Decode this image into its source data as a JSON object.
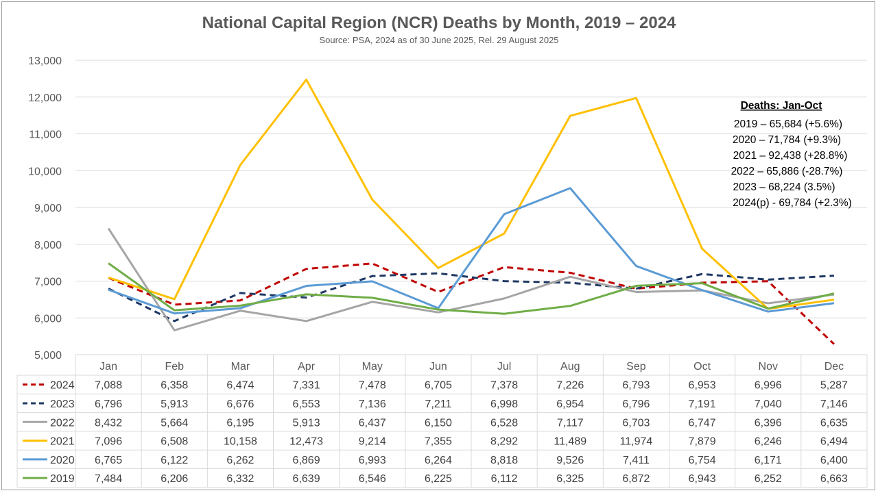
{
  "chart_data": {
    "type": "line",
    "title": "National Capital Region (NCR)  Deaths by Month, 2019 – 2024",
    "subtitle": "Source: PSA, 2024 as of 30 June 2025, Rel. 29 August 2025",
    "categories": [
      "Jan",
      "Feb",
      "Mar",
      "Apr",
      "May",
      "Jun",
      "Jul",
      "Aug",
      "Sep",
      "Oct",
      "Nov",
      "Dec"
    ],
    "ylim": [
      5000,
      13000
    ],
    "yticks": [
      5000,
      6000,
      7000,
      8000,
      9000,
      10000,
      11000,
      12000,
      13000
    ],
    "ytick_labels": [
      "5,000",
      "6,000",
      "7,000",
      "8,000",
      "9,000",
      "10,000",
      "11,000",
      "12,000",
      "13,000"
    ],
    "grid": true,
    "series": [
      {
        "name": "2024",
        "color": "#c00000",
        "dash": "dash",
        "values": [
          7088,
          6358,
          6474,
          7331,
          7478,
          6705,
          7378,
          7226,
          6793,
          6953,
          6996,
          5287
        ]
      },
      {
        "name": "2023",
        "color": "#1f3864",
        "dash": "dash",
        "values": [
          6796,
          5913,
          6676,
          6553,
          7136,
          7211,
          6998,
          6954,
          6796,
          7191,
          7040,
          7146
        ]
      },
      {
        "name": "2022",
        "color": "#a5a5a5",
        "dash": "solid",
        "values": [
          8432,
          5664,
          6195,
          5913,
          6437,
          6150,
          6528,
          7117,
          6703,
          6747,
          6396,
          6635
        ]
      },
      {
        "name": "2021",
        "color": "#ffc000",
        "dash": "solid",
        "values": [
          7096,
          6508,
          10158,
          12473,
          9214,
          7355,
          8292,
          11489,
          11974,
          7879,
          6246,
          6494
        ]
      },
      {
        "name": "2020",
        "color": "#5b9bd5",
        "dash": "solid",
        "values": [
          6765,
          6122,
          6262,
          6869,
          6993,
          6264,
          8818,
          9526,
          7411,
          6754,
          6171,
          6400
        ]
      },
      {
        "name": "2019",
        "color": "#70ad47",
        "dash": "solid",
        "values": [
          7484,
          6206,
          6332,
          6639,
          6546,
          6225,
          6112,
          6325,
          6872,
          6943,
          6252,
          6663
        ]
      }
    ],
    "table": [
      [
        "7,088",
        "6,358",
        "6,474",
        "7,331",
        "7,478",
        "6,705",
        "7,378",
        "7,226",
        "6,793",
        "6,953",
        "6,996",
        "5,287"
      ],
      [
        "6,796",
        "5,913",
        "6,676",
        "6,553",
        "7,136",
        "7,211",
        "6,998",
        "6,954",
        "6,796",
        "7,191",
        "7,040",
        "7,146"
      ],
      [
        "8,432",
        "5,664",
        "6,195",
        "5,913",
        "6,437",
        "6,150",
        "6,528",
        "7,117",
        "6,703",
        "6,747",
        "6,396",
        "6,635"
      ],
      [
        "7,096",
        "6,508",
        "10,158",
        "12,473",
        "9,214",
        "7,355",
        "8,292",
        "11,489",
        "11,974",
        "7,879",
        "6,246",
        "6,494"
      ],
      [
        "6,765",
        "6,122",
        "6,262",
        "6,869",
        "6,993",
        "6,264",
        "8,818",
        "9,526",
        "7,411",
        "6,754",
        "6,171",
        "6,400"
      ],
      [
        "7,484",
        "6,206",
        "6,332",
        "6,639",
        "6,546",
        "6,225",
        "6,112",
        "6,325",
        "6,872",
        "6,943",
        "6,252",
        "6,663"
      ]
    ],
    "annotation": {
      "heading": "Deaths: Jan-Oct",
      "lines": [
        "2019 – 65,684 (+5.6%)",
        "2020 – 71,784  (+9.3%)",
        "2021 – 92,438 (+28.8%)",
        "2022 – 65,886  (-28.7%)",
        "2023 – 68,224 (3.5%)",
        "2024(p) -  69,784 (+2.3%)"
      ]
    }
  }
}
